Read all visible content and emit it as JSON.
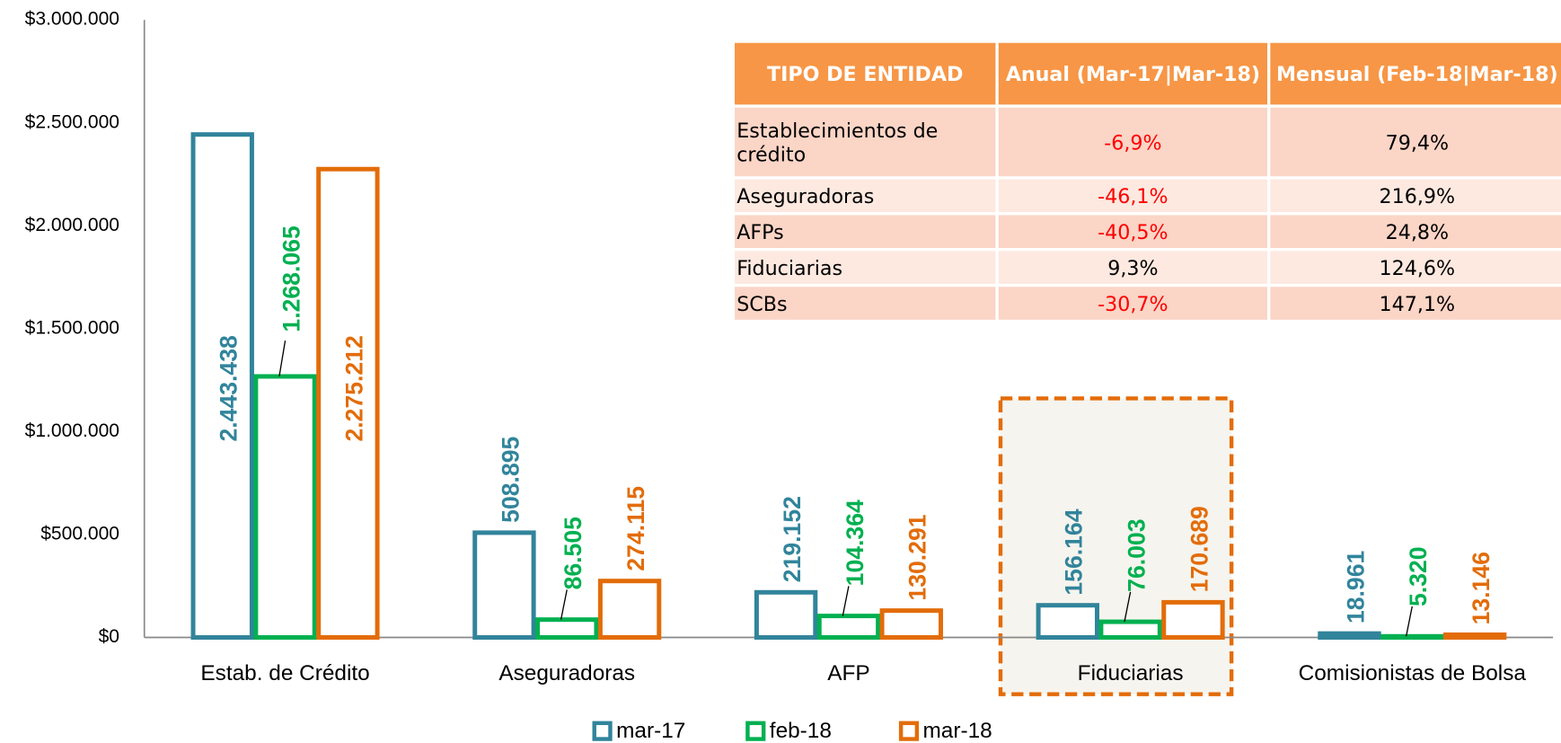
{
  "chart_data": {
    "type": "bar",
    "categories": [
      "Estab. de Crédito",
      "Aseguradoras",
      "AFP",
      "Fiduciarias",
      "Comisionistas de Bolsa"
    ],
    "series": [
      {
        "name": "mar-17",
        "color": "#31849b",
        "values": [
          2443438,
          508895,
          219152,
          156164,
          18961
        ],
        "value_labels": [
          "2.443.438",
          "508.895",
          "219.152",
          "156.164",
          "18.961"
        ]
      },
      {
        "name": "feb-18",
        "color": "#00b050",
        "values": [
          1268065,
          86505,
          104364,
          76003,
          5320
        ],
        "value_labels": [
          "1.268.065",
          "86.505",
          "104.364",
          "76.003",
          "5.320"
        ]
      },
      {
        "name": "mar-18",
        "color": "#e36c09",
        "values": [
          2275212,
          274115,
          130291,
          170689,
          13146
        ],
        "value_labels": [
          "2.275.212",
          "274.115",
          "130.291",
          "170.689",
          "13.146"
        ]
      }
    ],
    "ylim": [
      0,
      3000000
    ],
    "yticks": [
      {
        "value": 0,
        "label": "$0"
      },
      {
        "value": 500000,
        "label": "$500.000"
      },
      {
        "value": 1000000,
        "label": "$1.000.000"
      },
      {
        "value": 1500000,
        "label": "$1.500.000"
      },
      {
        "value": 2000000,
        "label": "$2.000.000"
      },
      {
        "value": 2500000,
        "label": "$2.500.000"
      },
      {
        "value": 3000000,
        "label": "$3.000.000"
      }
    ],
    "legend": "bottom",
    "table": {
      "header": [
        "TIPO DE ENTIDAD",
        "Anual (Mar-17|Mar-18)",
        "Mensual (Feb-18|Mar-18)"
      ],
      "rows": [
        [
          "Establecimientos de crédito",
          "-6,9%",
          "79,4%"
        ],
        [
          "Aseguradoras",
          "-46,1%",
          "216,9%"
        ],
        [
          "AFPs",
          "-40,5%",
          "24,8%"
        ],
        [
          "Fiduciarias",
          "9,3%",
          "124,6%"
        ],
        [
          "SCBs",
          "-30,7%",
          "147,1%"
        ]
      ]
    }
  }
}
